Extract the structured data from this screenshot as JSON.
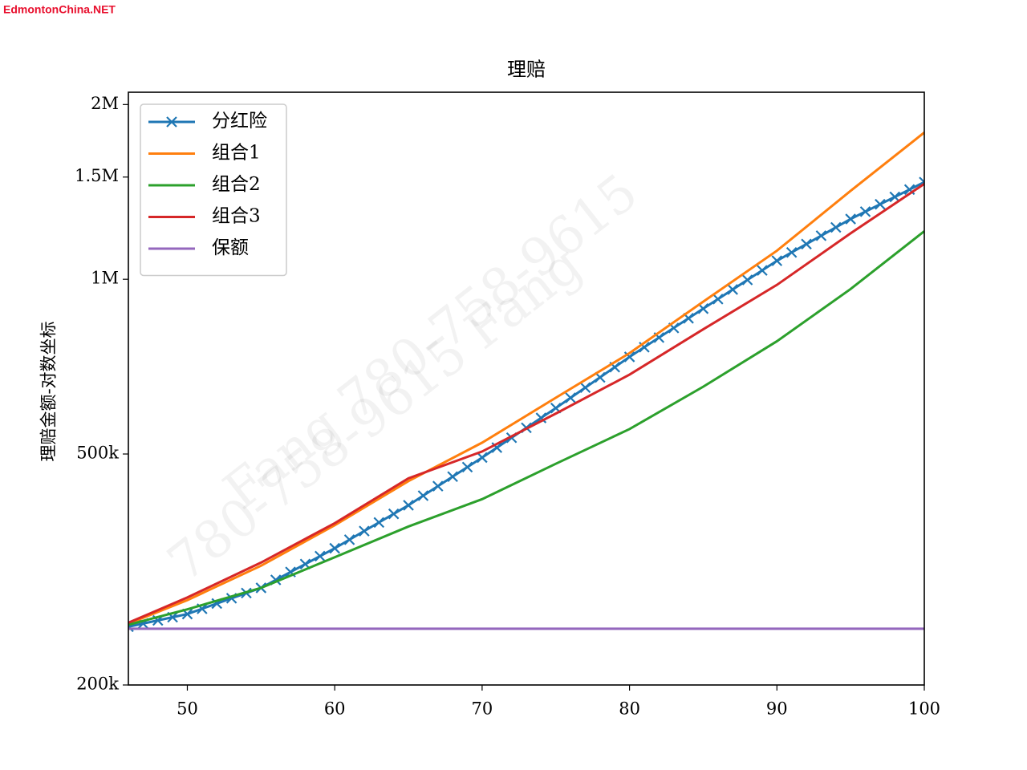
{
  "chart_data": {
    "type": "line",
    "title": "理赔",
    "ylabel": "理赔金额-对数坐标",
    "site_label": "EdmontonChina.NET",
    "watermarks": [
      "Fang  780-758-9615",
      "780-758-9615  Fang"
    ],
    "xlim": [
      46,
      100
    ],
    "xticks": [
      50,
      60,
      70,
      80,
      90,
      100
    ],
    "ylim": [
      200000,
      2100000
    ],
    "yscale": "log",
    "yticks": [
      {
        "value": 200000,
        "label": "200k"
      },
      {
        "value": 500000,
        "label": "500k"
      },
      {
        "value": 1000000,
        "label": "1M"
      },
      {
        "value": 1500000,
        "label": "1.5M"
      },
      {
        "value": 2000000,
        "label": "2M"
      }
    ],
    "legend": "upper left",
    "grid": false,
    "series": [
      {
        "name": "分红险",
        "color": "#1f77b4",
        "marker": "x",
        "x": [
          46,
          47,
          48,
          49,
          50,
          51,
          52,
          53,
          54,
          55,
          56,
          57,
          58,
          59,
          60,
          61,
          62,
          63,
          64,
          65,
          66,
          67,
          68,
          69,
          70,
          71,
          72,
          73,
          74,
          75,
          76,
          77,
          78,
          79,
          80,
          81,
          82,
          83,
          84,
          85,
          86,
          87,
          88,
          89,
          90,
          91,
          92,
          93,
          94,
          95,
          96,
          97,
          98,
          99,
          100
        ],
        "values": [
          252000,
          255200,
          258400,
          261700,
          265000,
          270600,
          276300,
          282100,
          288000,
          294000,
          303400,
          313100,
          323100,
          333400,
          344000,
          355900,
          368300,
          381100,
          394300,
          408000,
          423800,
          440100,
          457100,
          474700,
          493000,
          512800,
          533300,
          554700,
          576900,
          600000,
          624800,
          650700,
          677600,
          705700,
          735000,
          763700,
          793500,
          824400,
          856600,
          890000,
          924400,
          960200,
          997300,
          1035900,
          1076000,
          1112300,
          1149800,
          1188500,
          1228600,
          1270000,
          1307700,
          1346500,
          1386500,
          1427600,
          1470000
        ]
      },
      {
        "name": "组合1",
        "color": "#ff7f0e",
        "x": [
          46,
          50,
          55,
          60,
          65,
          70,
          75,
          80,
          85,
          90,
          95,
          100
        ],
        "values": [
          255000,
          280000,
          321000,
          377000,
          449000,
          523000,
          625000,
          746000,
          915000,
          1120000,
          1420000,
          1790000
        ]
      },
      {
        "name": "组合2",
        "color": "#2ca02c",
        "x": [
          46,
          50,
          55,
          60,
          65,
          70,
          75,
          80,
          85,
          90,
          95,
          100
        ],
        "values": [
          254000,
          270000,
          294000,
          332000,
          375000,
          418000,
          481000,
          552000,
          653000,
          782000,
          962000,
          1210000
        ]
      },
      {
        "name": "组合3",
        "color": "#d62728",
        "x": [
          46,
          50,
          55,
          60,
          65,
          70,
          75,
          80,
          85,
          90,
          95,
          100
        ],
        "values": [
          256000,
          283000,
          325000,
          380000,
          454000,
          505000,
          587000,
          685000,
          820000,
          978000,
          1200000,
          1460000
        ]
      },
      {
        "name": "保额",
        "color": "#9467bd",
        "x": [
          46,
          100
        ],
        "values": [
          250000,
          250000
        ]
      }
    ]
  }
}
